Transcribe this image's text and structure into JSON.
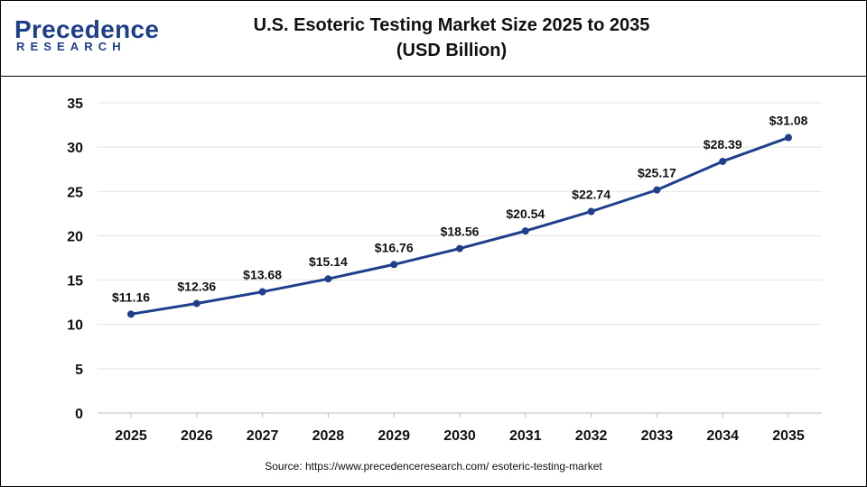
{
  "logo": {
    "word": "Precedence",
    "sub": "RESEARCH"
  },
  "header": {
    "title_line1": "U.S. Esoteric Testing Market Size 2025 to 2035",
    "title_line2": "(USD Billion)"
  },
  "source": "Source: https://www.precedenceresearch.com/ esoteric-testing-market",
  "colors": {
    "line": "#1f3e8c",
    "grid": "#e3e3e3",
    "brand": "#1f3e8c"
  },
  "chart_data": {
    "type": "line",
    "title": "U.S. Esoteric Testing Market Size 2025 to 2035 (USD Billion)",
    "xlabel": "",
    "ylabel": "",
    "categories": [
      "2025",
      "2026",
      "2027",
      "2028",
      "2029",
      "2030",
      "2031",
      "2032",
      "2033",
      "2034",
      "2035"
    ],
    "series": [
      {
        "values": [
          11.16,
          12.36,
          13.68,
          15.14,
          16.76,
          18.56,
          20.54,
          22.74,
          25.17,
          28.39,
          31.08
        ],
        "labels": [
          "$11.16",
          "$12.36",
          "$13.68",
          "$15.14",
          "$16.76",
          "$18.56",
          "$20.54",
          "$22.74",
          "$25.17",
          "$28.39",
          "$31.08"
        ]
      }
    ],
    "ylim": [
      0,
      35
    ],
    "yticks": [
      "0",
      "5",
      "10",
      "15",
      "20",
      "25",
      "30",
      "35"
    ],
    "grid": true,
    "legend": "none"
  }
}
